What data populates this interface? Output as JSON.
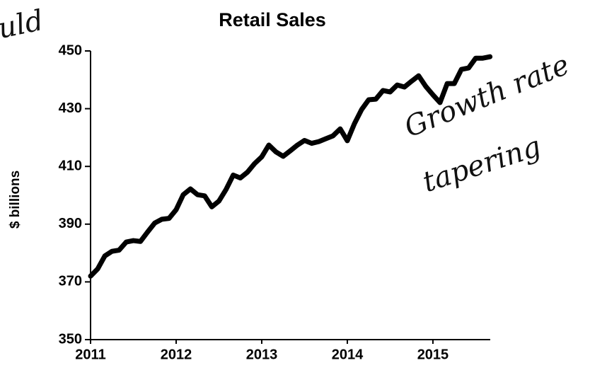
{
  "chart_data": {
    "type": "line",
    "title": "Retail Sales",
    "ylabel": "$ billions",
    "annotations": [
      "uld",
      "Growth rate",
      "tapering"
    ],
    "color": "#000000",
    "x": [
      2011,
      2011.083,
      2011.167,
      2011.25,
      2011.333,
      2011.417,
      2011.5,
      2011.583,
      2011.667,
      2011.75,
      2011.833,
      2011.917,
      2012,
      2012.083,
      2012.167,
      2012.25,
      2012.333,
      2012.417,
      2012.5,
      2012.583,
      2012.667,
      2012.75,
      2012.833,
      2012.917,
      2013,
      2013.083,
      2013.167,
      2013.25,
      2013.333,
      2013.417,
      2013.5,
      2013.583,
      2013.667,
      2013.75,
      2013.833,
      2013.917,
      2014,
      2014.083,
      2014.167,
      2014.25,
      2014.333,
      2014.417,
      2014.5,
      2014.583,
      2014.667,
      2014.75,
      2014.833,
      2014.917,
      2015,
      2015.083,
      2015.167,
      2015.25,
      2015.333,
      2015.417,
      2015.5,
      2015.583,
      2015.667
    ],
    "values": [
      372,
      374.5,
      379,
      380.6,
      381,
      383.8,
      384.3,
      384,
      387.3,
      390.4,
      391.7,
      392,
      395,
      400.2,
      402.2,
      400.2,
      399.8,
      396,
      398,
      402,
      407,
      406,
      408,
      411,
      413.3,
      417.4,
      415,
      413.5,
      415.4,
      417.4,
      419,
      418,
      418.6,
      419.6,
      420.6,
      423,
      418.9,
      424.8,
      429.7,
      433.1,
      433.3,
      436.3,
      435.8,
      438.2,
      437.5,
      439.5,
      441.4,
      437.7,
      434.8,
      432.1,
      438.7,
      438.7,
      443.6,
      444.1,
      447.5,
      447.5,
      448
    ],
    "xlim": [
      2011,
      2015.67
    ],
    "xticks": [
      2011,
      2012,
      2013,
      2014,
      2015
    ],
    "ylim": [
      350,
      450
    ],
    "yticks": [
      350,
      370,
      390,
      410,
      430,
      450
    ]
  }
}
